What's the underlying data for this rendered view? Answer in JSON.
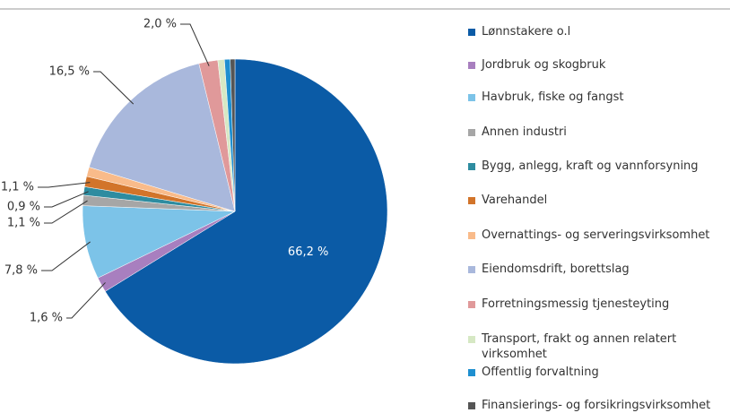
{
  "chart_data": {
    "type": "pie",
    "categories": [
      "Lønnstakere o.l",
      "Jordbruk og skogbruk",
      "Havbruk, fiske og fangst",
      "Annen industri",
      "Bygg, anlegg, kraft og vannforsyning",
      "Varehandel",
      "Overnattings- og serveringsvirksomhet",
      "Eiendomsdrift, borettslag",
      "Forretningsmessig tjenesteyting",
      "Transport, frakt og annen relatert virksomhet",
      "Offentlig forvaltning",
      "Finansierings- og forsikringsvirksomhet"
    ],
    "values": [
      66.2,
      1.6,
      7.8,
      1.1,
      0.9,
      1.1,
      1.0,
      16.5,
      2.0,
      0.7,
      0.6,
      0.5
    ],
    "value_labels": [
      "66,2 %",
      "1,6 %",
      "7,8 %",
      "1,1 %",
      "0,9 %",
      "1,1 %",
      null,
      "16,5 %",
      "2,0 %",
      null,
      null,
      null
    ],
    "colors": [
      "#0b5ba6",
      "#a87fbf",
      "#7cc3e8",
      "#a6a6a6",
      "#2e8ca0",
      "#d2742a",
      "#f9bb8a",
      "#a9b8dc",
      "#e0999a",
      "#d6e8c4",
      "#1e8fd0",
      "#555555"
    ],
    "legend": "right"
  }
}
